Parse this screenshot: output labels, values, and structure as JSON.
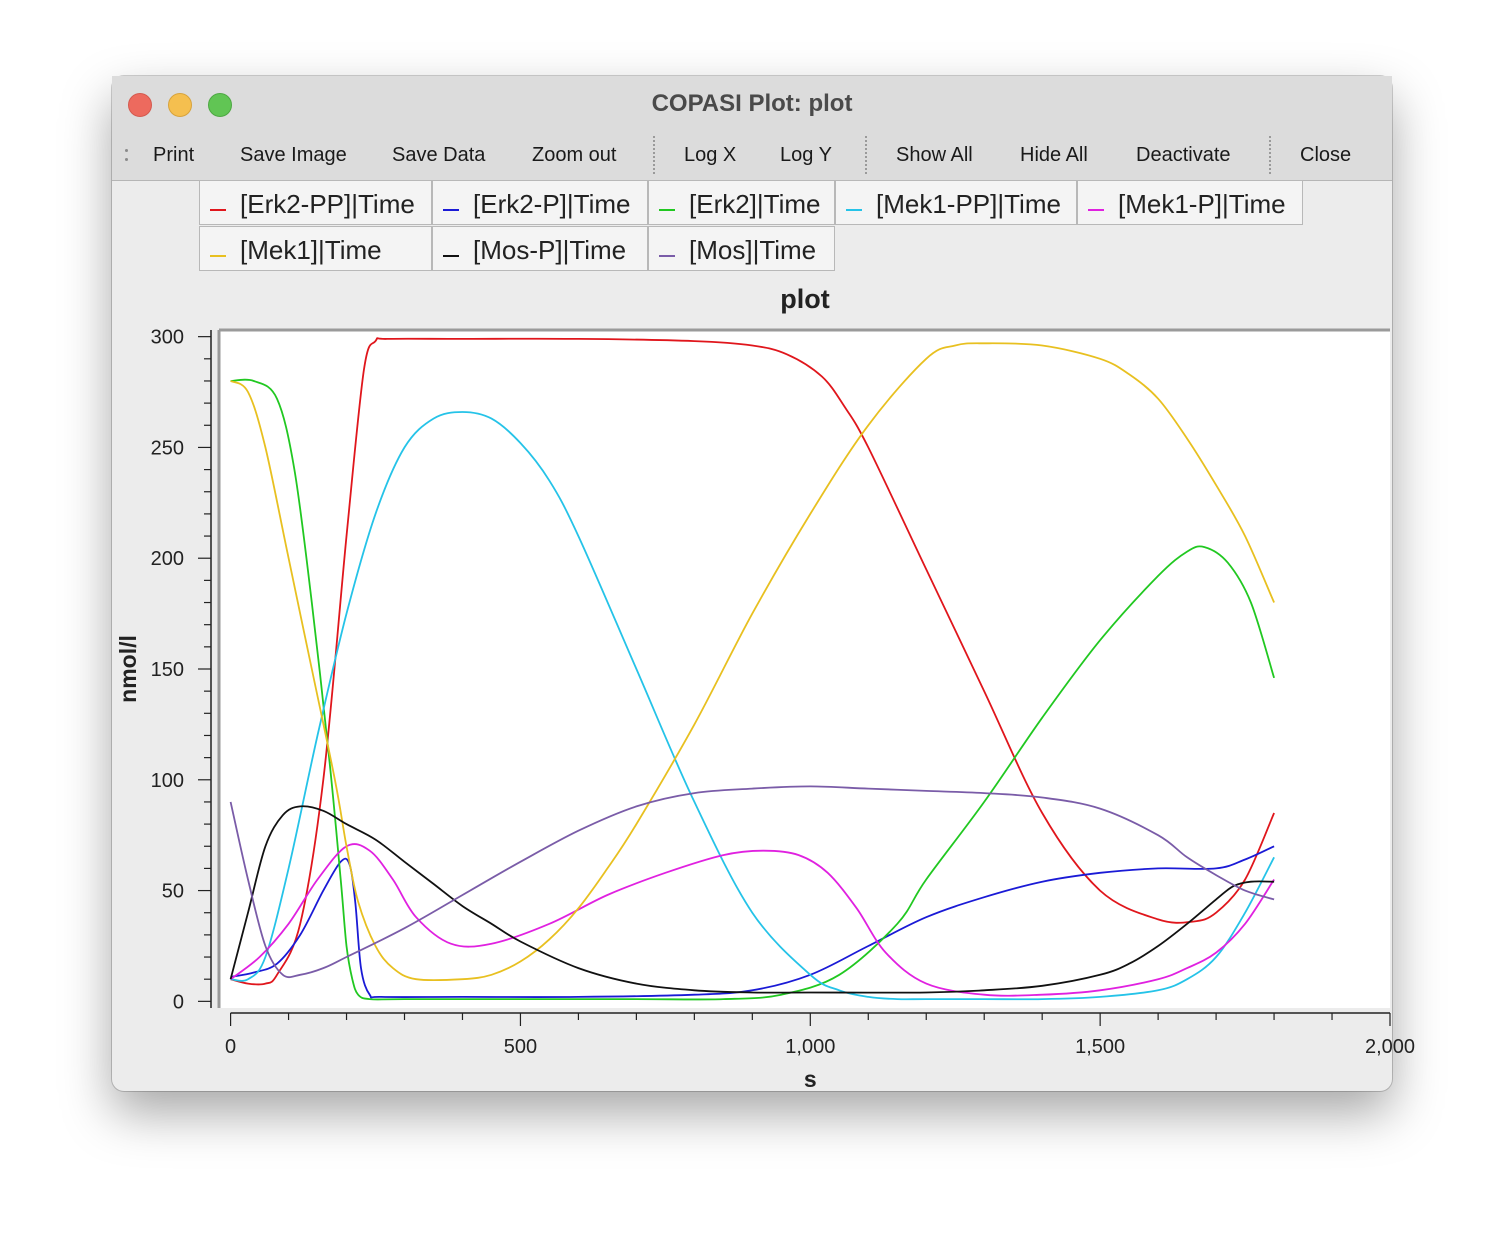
{
  "window": {
    "title": "COPASI Plot: plot"
  },
  "toolbar": {
    "print": "Print",
    "save_image": "Save Image",
    "save_data": "Save Data",
    "zoom_out": "Zoom out",
    "log_x": "Log X",
    "log_y": "Log Y",
    "show_all": "Show All",
    "hide_all": "Hide All",
    "deactivate": "Deactivate",
    "close": "Close"
  },
  "legend": [
    {
      "label": "[Erk2-PP]|Time",
      "color": "#e0161c"
    },
    {
      "label": "[Erk2-P]|Time",
      "color": "#1a1ad6"
    },
    {
      "label": "[Erk2]|Time",
      "color": "#21c821"
    },
    {
      "label": "[Mek1-PP]|Time",
      "color": "#25c3e8"
    },
    {
      "label": "[Mek1-P]|Time",
      "color": "#e021e0"
    },
    {
      "label": "[Mek1]|Time",
      "color": "#e8c020"
    },
    {
      "label": "[Mos-P]|Time",
      "color": "#111111"
    },
    {
      "label": "[Mos]|Time",
      "color": "#7a5ca8"
    }
  ],
  "chart_data": {
    "type": "line",
    "title": "plot",
    "xlabel": "s",
    "ylabel": "nmol/l",
    "xlim": [
      -20,
      2000
    ],
    "ylim": [
      -3,
      303
    ],
    "xticks": [
      0,
      500,
      1000,
      1500,
      2000
    ],
    "xtick_labels": [
      "0",
      "500",
      "1,000",
      "1,500",
      "2,000"
    ],
    "yticks": [
      0,
      50,
      100,
      150,
      200,
      250,
      300
    ],
    "ytick_labels": [
      "0",
      "50",
      "100",
      "150",
      "200",
      "250",
      "300"
    ],
    "grid": false,
    "series": [
      {
        "name": "[Erk2-PP]|Time",
        "color": "#e0161c",
        "x": [
          0,
          30,
          60,
          80,
          120,
          160,
          200,
          230,
          250,
          270,
          400,
          600,
          800,
          900,
          960,
          1020,
          1060,
          1100,
          1200,
          1300,
          1400,
          1500,
          1600,
          1660,
          1700,
          1750,
          1800
        ],
        "y": [
          10,
          8,
          8,
          12,
          35,
          100,
          210,
          285,
          298,
          299,
          299,
          299,
          298,
          296,
          292,
          282,
          268,
          250,
          195,
          140,
          85,
          50,
          37,
          36,
          40,
          55,
          85
        ]
      },
      {
        "name": "[Erk2-P]|Time",
        "color": "#1a1ad6",
        "x": [
          0,
          40,
          80,
          120,
          160,
          190,
          205,
          215,
          225,
          240,
          260,
          400,
          600,
          800,
          900,
          1000,
          1100,
          1200,
          1300,
          1400,
          1500,
          1600,
          1700,
          1750,
          1800
        ],
        "y": [
          11,
          13,
          17,
          30,
          50,
          63,
          62,
          45,
          15,
          3,
          2,
          2,
          2,
          3,
          5,
          12,
          25,
          38,
          47,
          54,
          58,
          60,
          60,
          64,
          70
        ]
      },
      {
        "name": "[Erk2]|Time",
        "color": "#21c821",
        "x": [
          0,
          40,
          80,
          110,
          140,
          170,
          190,
          200,
          210,
          220,
          240,
          300,
          500,
          700,
          850,
          950,
          1050,
          1150,
          1200,
          1300,
          1400,
          1500,
          1600,
          1650,
          1680,
          1720,
          1760,
          1800
        ],
        "y": [
          280,
          280,
          272,
          240,
          180,
          110,
          55,
          25,
          10,
          3,
          1,
          1,
          1,
          1,
          1,
          3,
          12,
          35,
          55,
          90,
          128,
          163,
          192,
          203,
          205,
          198,
          180,
          146
        ]
      },
      {
        "name": "[Mek1-PP]|Time",
        "color": "#25c3e8",
        "x": [
          0,
          30,
          60,
          100,
          150,
          200,
          250,
          300,
          350,
          400,
          450,
          500,
          550,
          600,
          700,
          800,
          900,
          1000,
          1050,
          1100,
          1150,
          1200,
          1300,
          1400,
          1500,
          1600,
          1650,
          1700,
          1750,
          1800
        ],
        "y": [
          10,
          10,
          20,
          60,
          120,
          175,
          220,
          250,
          263,
          266,
          263,
          252,
          235,
          210,
          150,
          90,
          40,
          12,
          5,
          2,
          1,
          1,
          1,
          1,
          2,
          5,
          10,
          20,
          40,
          65
        ]
      },
      {
        "name": "[Mek1-P]|Time",
        "color": "#e021e0",
        "x": [
          0,
          50,
          100,
          150,
          200,
          240,
          280,
          320,
          380,
          450,
          550,
          650,
          750,
          850,
          920,
          980,
          1030,
          1080,
          1130,
          1200,
          1300,
          1400,
          1500,
          1600,
          1650,
          1700,
          1750,
          1800
        ],
        "y": [
          10,
          20,
          35,
          55,
          70,
          68,
          55,
          38,
          26,
          26,
          35,
          48,
          58,
          66,
          68,
          66,
          58,
          42,
          22,
          8,
          3,
          3,
          5,
          10,
          15,
          22,
          35,
          55
        ]
      },
      {
        "name": "[Mek1]|Time",
        "color": "#e8c020",
        "x": [
          0,
          30,
          60,
          100,
          140,
          180,
          200,
          220,
          250,
          280,
          320,
          400,
          450,
          500,
          550,
          600,
          650,
          700,
          800,
          900,
          1000,
          1100,
          1200,
          1250,
          1300,
          1400,
          1500,
          1550,
          1600,
          1650,
          1700,
          1750,
          1800
        ],
        "y": [
          280,
          275,
          250,
          200,
          150,
          100,
          70,
          45,
          25,
          15,
          10,
          10,
          12,
          18,
          28,
          42,
          60,
          80,
          125,
          175,
          220,
          260,
          290,
          296,
          297,
          296,
          290,
          283,
          272,
          254,
          233,
          210,
          180
        ]
      },
      {
        "name": "[Mos-P]|Time",
        "color": "#111111",
        "x": [
          0,
          30,
          60,
          90,
          120,
          160,
          200,
          250,
          300,
          350,
          400,
          450,
          500,
          600,
          700,
          800,
          900,
          1000,
          1200,
          1300,
          1400,
          1500,
          1550,
          1600,
          1650,
          1700,
          1730,
          1760,
          1800
        ],
        "y": [
          10,
          40,
          70,
          84,
          88,
          86,
          80,
          73,
          63,
          53,
          43,
          35,
          27,
          15,
          8,
          5,
          4,
          4,
          4,
          5,
          7,
          12,
          17,
          25,
          35,
          46,
          52,
          54,
          54
        ]
      },
      {
        "name": "[Mos]|Time",
        "color": "#7a5ca8",
        "x": [
          0,
          30,
          60,
          90,
          120,
          160,
          200,
          300,
          400,
          500,
          600,
          700,
          800,
          900,
          1000,
          1100,
          1200,
          1300,
          1400,
          1500,
          1600,
          1650,
          1700,
          1750,
          1800
        ],
        "y": [
          90,
          55,
          25,
          12,
          12,
          15,
          20,
          33,
          48,
          63,
          77,
          88,
          94,
          96,
          97,
          96,
          95,
          94,
          92,
          87,
          75,
          65,
          57,
          50,
          46
        ]
      }
    ]
  }
}
